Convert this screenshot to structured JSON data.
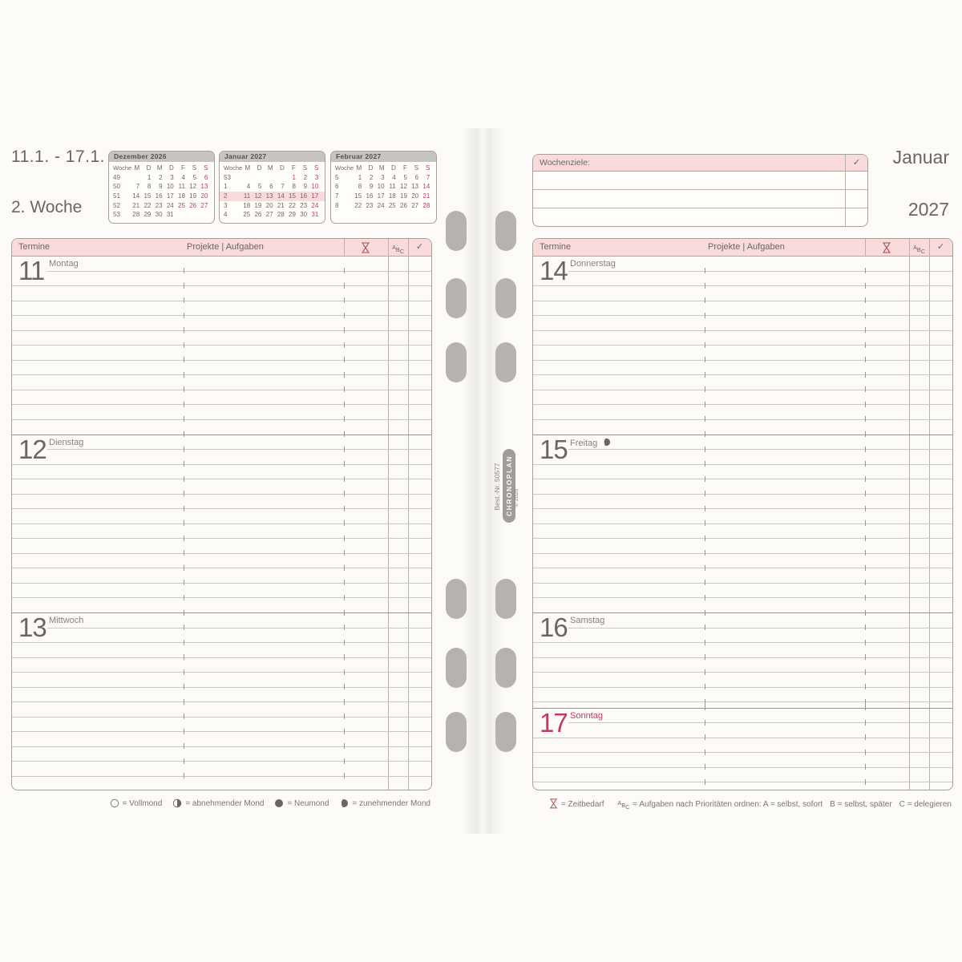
{
  "colors": {
    "accent_pink": "#f8dbda",
    "red": "#c23a5f",
    "icon_red": "#b04f58",
    "text_dark": "#6b665f",
    "text_mid": "#87827a",
    "hole_gray": "#b6b3af"
  },
  "header_left": {
    "date_range": "11.1. - 17.1.",
    "week_label": "2. Woche"
  },
  "header_right": {
    "month": "Januar",
    "year": "2027"
  },
  "wochenziele": {
    "label": "Wochenziele:",
    "check": "✓"
  },
  "mini_calendars": [
    {
      "title": "Dezember 2026",
      "week_header": "Woche",
      "weekdays": [
        "M",
        "D",
        "M",
        "D",
        "F",
        "S",
        "S"
      ],
      "weekday_red": [
        6
      ],
      "rows": [
        {
          "week": "49",
          "days": [
            "",
            "1",
            "2",
            "3",
            "4",
            "5",
            "6"
          ],
          "red": [
            6
          ],
          "highlight": false
        },
        {
          "week": "50",
          "days": [
            "7",
            "8",
            "9",
            "10",
            "11",
            "12",
            "13"
          ],
          "red": [
            6
          ],
          "highlight": false
        },
        {
          "week": "51",
          "days": [
            "14",
            "15",
            "16",
            "17",
            "18",
            "19",
            "20"
          ],
          "red": [
            6
          ],
          "highlight": false
        },
        {
          "week": "52",
          "days": [
            "21",
            "22",
            "23",
            "24",
            "25",
            "26",
            "27"
          ],
          "red": [
            4,
            5,
            6
          ],
          "highlight": false
        },
        {
          "week": "53",
          "days": [
            "28",
            "29",
            "30",
            "31",
            "",
            "",
            ""
          ],
          "red": [],
          "highlight": false
        }
      ]
    },
    {
      "title": "Januar 2027",
      "week_header": "Woche",
      "weekdays": [
        "M",
        "D",
        "M",
        "D",
        "F",
        "S",
        "S"
      ],
      "weekday_red": [
        6
      ],
      "rows": [
        {
          "week": "53",
          "days": [
            "",
            "",
            "",
            "",
            "1",
            "2",
            "3"
          ],
          "red": [
            4,
            6
          ],
          "highlight": false
        },
        {
          "week": "1",
          "days": [
            "4",
            "5",
            "6",
            "7",
            "8",
            "9",
            "10"
          ],
          "red": [
            6
          ],
          "highlight": false
        },
        {
          "week": "2",
          "days": [
            "11",
            "12",
            "13",
            "14",
            "15",
            "16",
            "17"
          ],
          "red": [
            6
          ],
          "highlight": true
        },
        {
          "week": "3",
          "days": [
            "18",
            "19",
            "20",
            "21",
            "22",
            "23",
            "24"
          ],
          "red": [
            6
          ],
          "highlight": false
        },
        {
          "week": "4",
          "days": [
            "25",
            "26",
            "27",
            "28",
            "29",
            "30",
            "31"
          ],
          "red": [
            6
          ],
          "highlight": false
        }
      ]
    },
    {
      "title": "Februar 2027",
      "week_header": "Woche",
      "weekdays": [
        "M",
        "D",
        "M",
        "D",
        "F",
        "S",
        "S"
      ],
      "weekday_red": [
        6
      ],
      "rows": [
        {
          "week": "5",
          "days": [
            "1",
            "2",
            "3",
            "4",
            "5",
            "6",
            "7"
          ],
          "red": [
            6
          ],
          "highlight": false
        },
        {
          "week": "6",
          "days": [
            "8",
            "9",
            "10",
            "11",
            "12",
            "13",
            "14"
          ],
          "red": [
            6
          ],
          "highlight": false
        },
        {
          "week": "7",
          "days": [
            "15",
            "16",
            "17",
            "18",
            "19",
            "20",
            "21"
          ],
          "red": [
            6
          ],
          "highlight": false
        },
        {
          "week": "8",
          "days": [
            "22",
            "23",
            "24",
            "25",
            "26",
            "27",
            "28"
          ],
          "red": [
            6
          ],
          "highlight": false
        }
      ]
    }
  ],
  "day_table_header": {
    "termine": "Termine",
    "projekte": "Projekte | Aufgaben",
    "zeit_icon": "hourglass-icon",
    "abc": [
      "A",
      "B",
      "C"
    ],
    "check": "✓"
  },
  "left_page_days": [
    {
      "num": "11",
      "name": "Montag"
    },
    {
      "num": "12",
      "name": "Dienstag"
    },
    {
      "num": "13",
      "name": "Mittwoch"
    }
  ],
  "right_page_days": [
    {
      "num": "14",
      "name": "Donnerstag"
    },
    {
      "num": "15",
      "name": "Freitag",
      "moon": "waxing-moon"
    },
    {
      "num": "16",
      "name": "Samstag"
    },
    {
      "num": "17",
      "name": "Sonntag",
      "red": true
    }
  ],
  "moon_legend": [
    {
      "icon": "full-moon-icon",
      "label": "= Vollmond"
    },
    {
      "icon": "waning-moon-icon",
      "label": "= abnehmender Mond"
    },
    {
      "icon": "new-moon-icon",
      "label": "= Neumond"
    },
    {
      "icon": "waxing-moon-icon",
      "label": "= zunehmender Mond"
    }
  ],
  "priority_legend": {
    "zeit_label": "= Zeitbedarf",
    "abc_intro": "= Aufgaben nach Prioritäten ordnen: A = selbst, sofort",
    "b": "B = selbst, später",
    "c": "C = delegieren"
  },
  "spine": {
    "best_nr": "Best.-Nr. 50577",
    "brand": "CHRONOPLAN",
    "copyright": "© 2026"
  }
}
